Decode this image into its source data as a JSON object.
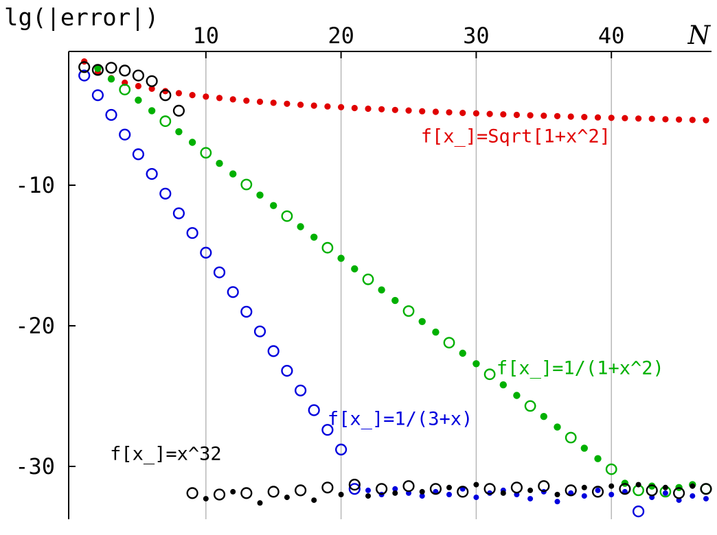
{
  "chart_data": {
    "type": "scatter",
    "title": "",
    "x_axis": {
      "label": "N",
      "position": "top",
      "ticks": [
        10,
        20,
        30,
        40
      ],
      "range": [
        0,
        47.5
      ]
    },
    "y_axis": {
      "label": "lg(|error|)",
      "position": "left",
      "ticks": [
        -10,
        -20,
        -30
      ],
      "range": [
        -34,
        0
      ]
    },
    "grid": {
      "vertical": true,
      "horizontal": false,
      "color": "#b3b3b3"
    },
    "series": [
      {
        "name": "f[x_]=Sqrt[1+x^2]",
        "color": "#e00000",
        "marker": "filled",
        "marker_size": 4.6,
        "points": [
          [
            1,
            -1.2
          ],
          [
            2,
            -1.95
          ],
          [
            3,
            -2.39
          ],
          [
            4,
            -2.71
          ],
          [
            5,
            -2.95
          ],
          [
            6,
            -3.14
          ],
          [
            7,
            -3.31
          ],
          [
            8,
            -3.46
          ],
          [
            9,
            -3.59
          ],
          [
            10,
            -3.7
          ],
          [
            11,
            -3.8
          ],
          [
            12,
            -3.9
          ],
          [
            13,
            -3.99
          ],
          [
            14,
            -4.07
          ],
          [
            15,
            -4.14
          ],
          [
            16,
            -4.21
          ],
          [
            17,
            -4.28
          ],
          [
            18,
            -4.34
          ],
          [
            19,
            -4.4
          ],
          [
            20,
            -4.45
          ],
          [
            21,
            -4.51
          ],
          [
            22,
            -4.56
          ],
          [
            23,
            -4.6
          ],
          [
            24,
            -4.65
          ],
          [
            25,
            -4.69
          ],
          [
            26,
            -4.74
          ],
          [
            27,
            -4.78
          ],
          [
            28,
            -4.82
          ],
          [
            29,
            -4.86
          ],
          [
            30,
            -4.89
          ],
          [
            31,
            -4.93
          ],
          [
            32,
            -4.96
          ],
          [
            33,
            -5.0
          ],
          [
            34,
            -5.03
          ],
          [
            35,
            -5.06
          ],
          [
            36,
            -5.09
          ],
          [
            37,
            -5.12
          ],
          [
            38,
            -5.15
          ],
          [
            39,
            -5.18
          ],
          [
            40,
            -5.21
          ],
          [
            41,
            -5.23
          ],
          [
            42,
            -5.26
          ],
          [
            43,
            -5.28
          ],
          [
            44,
            -5.31
          ],
          [
            45,
            -5.33
          ],
          [
            46,
            -5.36
          ],
          [
            47,
            -5.38
          ]
        ]
      },
      {
        "name": "f[x_]=1/(1+x^2)",
        "color": "#00b000",
        "marker": "filled",
        "marker_size": 5.2,
        "points": [
          [
            2,
            -1.7
          ],
          [
            3,
            -2.45
          ],
          [
            5,
            -3.95
          ],
          [
            6,
            -4.7
          ],
          [
            8,
            -6.2
          ],
          [
            9,
            -6.95
          ],
          [
            11,
            -8.45
          ],
          [
            12,
            -9.2
          ],
          [
            14,
            -10.7
          ],
          [
            15,
            -11.45
          ],
          [
            17,
            -12.95
          ],
          [
            18,
            -13.7
          ],
          [
            20,
            -15.2
          ],
          [
            21,
            -15.95
          ],
          [
            23,
            -17.45
          ],
          [
            24,
            -18.2
          ],
          [
            26,
            -19.7
          ],
          [
            27,
            -20.45
          ],
          [
            29,
            -21.95
          ],
          [
            30,
            -22.7
          ],
          [
            32,
            -24.2
          ],
          [
            33,
            -24.95
          ],
          [
            35,
            -26.45
          ],
          [
            36,
            -27.2
          ],
          [
            38,
            -28.7
          ],
          [
            39,
            -29.45
          ],
          [
            41,
            -31.2
          ],
          [
            43,
            -31.4
          ],
          [
            45,
            -31.5
          ],
          [
            46,
            -31.3
          ]
        ]
      },
      {
        "name": "f[x_]=1/(1+x^2)",
        "color": "#00b000",
        "marker": "open",
        "marker_size": 7.2,
        "points": [
          [
            4,
            -3.2
          ],
          [
            7,
            -5.45
          ],
          [
            10,
            -7.7
          ],
          [
            13,
            -9.95
          ],
          [
            16,
            -12.2
          ],
          [
            19,
            -14.45
          ],
          [
            22,
            -16.7
          ],
          [
            25,
            -18.95
          ],
          [
            28,
            -21.2
          ],
          [
            31,
            -23.45
          ],
          [
            34,
            -25.7
          ],
          [
            37,
            -27.95
          ],
          [
            40,
            -30.2
          ],
          [
            42,
            -31.7
          ],
          [
            44,
            -31.8
          ],
          [
            47,
            -31.6
          ]
        ]
      },
      {
        "name": "f[x_]=1/(3+x)",
        "color": "#0000dd",
        "marker": "open",
        "marker_size": 7.4,
        "points": [
          [
            1,
            -2.2
          ],
          [
            2,
            -3.6
          ],
          [
            3,
            -5.0
          ],
          [
            4,
            -6.4
          ],
          [
            5,
            -7.8
          ],
          [
            6,
            -9.2
          ],
          [
            7,
            -10.6
          ],
          [
            8,
            -12.0
          ],
          [
            9,
            -13.4
          ],
          [
            10,
            -14.8
          ],
          [
            11,
            -16.2
          ],
          [
            12,
            -17.6
          ],
          [
            13,
            -19.0
          ],
          [
            14,
            -20.4
          ],
          [
            15,
            -21.8
          ],
          [
            16,
            -23.2
          ],
          [
            17,
            -24.6
          ],
          [
            18,
            -26.0
          ],
          [
            19,
            -27.4
          ],
          [
            20,
            -28.8
          ],
          [
            21,
            -31.6
          ],
          [
            42,
            -33.2
          ]
        ]
      },
      {
        "name": "f[x_]=1/(3+x)",
        "color": "#0000dd",
        "marker": "filled",
        "marker_size": 4.0,
        "points": [
          [
            22,
            -31.7
          ],
          [
            23,
            -32.0
          ],
          [
            24,
            -31.6
          ],
          [
            25,
            -31.9
          ],
          [
            26,
            -32.1
          ],
          [
            27,
            -31.8
          ],
          [
            28,
            -32.0
          ],
          [
            29,
            -31.6
          ],
          [
            30,
            -32.2
          ],
          [
            31,
            -31.9
          ],
          [
            32,
            -31.7
          ],
          [
            33,
            -32.0
          ],
          [
            34,
            -32.3
          ],
          [
            35,
            -31.8
          ],
          [
            36,
            -32.5
          ],
          [
            37,
            -31.9
          ],
          [
            38,
            -32.1
          ],
          [
            39,
            -31.7
          ],
          [
            40,
            -32.0
          ],
          [
            41,
            -31.8
          ],
          [
            43,
            -32.2
          ],
          [
            44,
            -31.9
          ],
          [
            45,
            -32.4
          ],
          [
            46,
            -32.1
          ],
          [
            47,
            -32.3
          ]
        ]
      },
      {
        "name": "f[x_]=x^32",
        "color": "#000000",
        "marker": "open",
        "marker_size": 7.4,
        "points": [
          [
            1,
            -1.6
          ],
          [
            2,
            -1.8
          ],
          [
            3,
            -1.65
          ],
          [
            4,
            -1.85
          ],
          [
            5,
            -2.2
          ],
          [
            6,
            -2.6
          ],
          [
            7,
            -3.6
          ],
          [
            8,
            -4.7
          ],
          [
            9,
            -31.9
          ],
          [
            11,
            -32.0
          ],
          [
            13,
            -31.9
          ],
          [
            15,
            -31.8
          ],
          [
            17,
            -31.7
          ],
          [
            19,
            -31.5
          ],
          [
            21,
            -31.3
          ],
          [
            23,
            -31.6
          ],
          [
            25,
            -31.4
          ],
          [
            27,
            -31.6
          ],
          [
            29,
            -31.8
          ],
          [
            31,
            -31.6
          ],
          [
            33,
            -31.5
          ],
          [
            35,
            -31.4
          ],
          [
            37,
            -31.7
          ],
          [
            39,
            -31.8
          ],
          [
            41,
            -31.6
          ],
          [
            43,
            -31.7
          ],
          [
            45,
            -31.9
          ],
          [
            47,
            -31.6
          ]
        ]
      },
      {
        "name": "f[x_]=x^32",
        "color": "#000000",
        "marker": "filled",
        "marker_size": 4.0,
        "points": [
          [
            10,
            -32.3
          ],
          [
            12,
            -31.8
          ],
          [
            14,
            -32.6
          ],
          [
            16,
            -32.2
          ],
          [
            18,
            -32.4
          ],
          [
            20,
            -32.0
          ],
          [
            22,
            -32.1
          ],
          [
            24,
            -31.9
          ],
          [
            26,
            -31.8
          ],
          [
            28,
            -31.5
          ],
          [
            30,
            -31.3
          ],
          [
            32,
            -31.9
          ],
          [
            34,
            -31.7
          ],
          [
            36,
            -32.0
          ],
          [
            38,
            -31.5
          ],
          [
            40,
            -31.4
          ],
          [
            42,
            -31.3
          ],
          [
            44,
            -31.5
          ],
          [
            46,
            -31.4
          ]
        ]
      }
    ],
    "annotations": [
      {
        "text": "f[x_]=Sqrt[1+x^2]",
        "color": "#e00000",
        "x": 25.9,
        "y": -6.5
      },
      {
        "text": "f[x_]=1/(1+x^2)",
        "color": "#00b000",
        "x": 31.5,
        "y": -23.0
      },
      {
        "text": "f[x_]=1/(3+x)",
        "color": "#0000dd",
        "x": 19.0,
        "y": -26.6
      },
      {
        "text": "f[x_]=x^32",
        "color": "#000000",
        "x": 2.9,
        "y": -29.1
      }
    ]
  }
}
